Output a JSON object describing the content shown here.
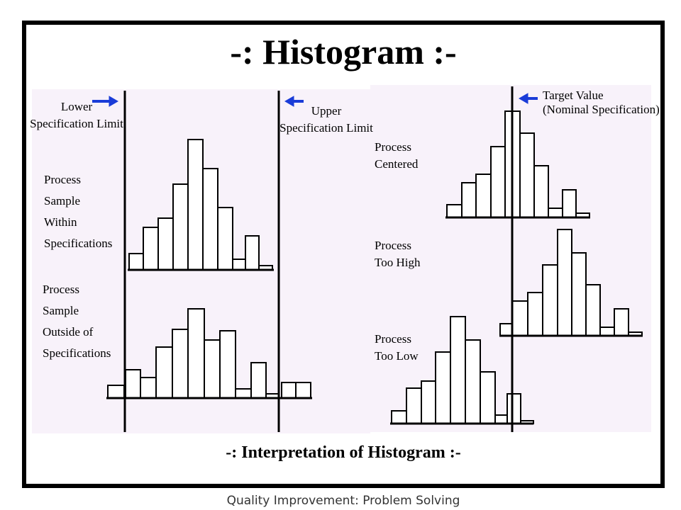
{
  "header": {
    "title": "-: Histogram :-"
  },
  "left_panel": {
    "lower_limit": [
      "Lower",
      "Specification Limit"
    ],
    "upper_limit": [
      "Upper",
      "Specification Limit"
    ],
    "within": [
      "Process",
      "Sample",
      "Within",
      "Specifications"
    ],
    "outside": [
      "Process",
      "Sample",
      "Outside of",
      "Specifications"
    ]
  },
  "right_panel": {
    "target": [
      "Target Value",
      "(Nominal Specification)"
    ],
    "centered": [
      "Process",
      "Centered"
    ],
    "too_high": [
      "Process",
      "Too High"
    ],
    "too_low": [
      "Process",
      "Too Low"
    ]
  },
  "caption": "-: Interpretation of Histogram :-",
  "footer": "Quality Improvement: Problem Solving"
}
